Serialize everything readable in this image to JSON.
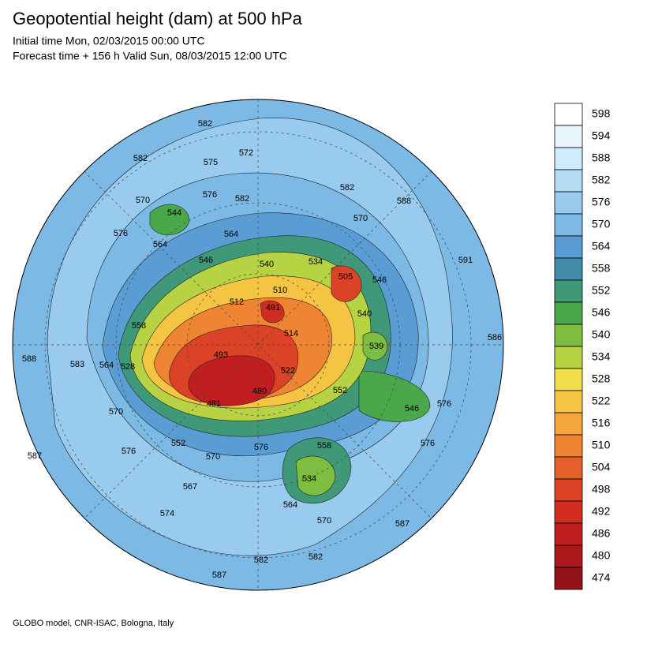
{
  "header": {
    "title": "Geopotential height (dam) at 500 hPa",
    "initial": "Initial time Mon, 02/03/2015 00:00 UTC",
    "forecast": "Forecast time + 156 h Valid Sun, 08/03/2015 12:00 UTC"
  },
  "colorbar": {
    "levels": [
      598,
      594,
      588,
      582,
      576,
      570,
      564,
      558,
      552,
      546,
      540,
      534,
      528,
      522,
      516,
      510,
      504,
      498,
      492,
      486,
      480,
      474
    ],
    "colors": [
      "#ffffff",
      "#e8f5fc",
      "#d0ebf9",
      "#b3dcf4",
      "#98cbee",
      "#7db9e5",
      "#5a9dd4",
      "#3f8ba8",
      "#3f9878",
      "#4aa84a",
      "#7dbd3f",
      "#b7d344",
      "#f0de4b",
      "#f6c443",
      "#f4a53c",
      "#ef8532",
      "#e7602b",
      "#dc4226",
      "#d12b22",
      "#c11e20",
      "#ad171c",
      "#931318"
    ]
  },
  "contour_labels": [
    "582",
    "572",
    "575",
    "582",
    "576",
    "582",
    "570",
    "544",
    "582",
    "588",
    "576",
    "564",
    "564",
    "570",
    "546",
    "540",
    "534",
    "505",
    "510",
    "512",
    "491",
    "546",
    "591",
    "540",
    "558",
    "514",
    "539",
    "586",
    "588",
    "528",
    "564",
    "583",
    "493",
    "522",
    "552",
    "480",
    "481",
    "546",
    "576",
    "570",
    "552",
    "576",
    "570",
    "576",
    "558",
    "576",
    "587",
    "534",
    "567",
    "564",
    "574",
    "570",
    "587",
    "582",
    "582",
    "587"
  ],
  "footer": "GLOBO model, CNR-ISAC, Bologna, Italy"
}
